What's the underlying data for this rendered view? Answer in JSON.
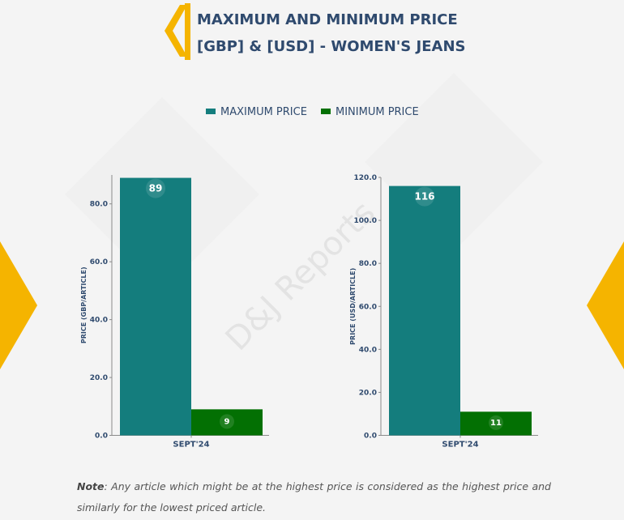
{
  "title": {
    "line1": "MAXIMUM AND MINIMUM PRICE",
    "line2": "[GBP] & [USD] - WOMEN'S JEANS"
  },
  "legend": {
    "max_label": "MAXIMUM PRICE",
    "min_label": "MINIMUM PRICE"
  },
  "colors": {
    "max": "#147d7d",
    "min": "#037003",
    "accent": "#f5b400",
    "text": "#2f4a6e"
  },
  "watermark": "D&J Reports",
  "chart_data": [
    {
      "type": "bar",
      "categories": [
        "SEPT'24"
      ],
      "series": [
        {
          "name": "MAXIMUM PRICE",
          "values": [
            89
          ]
        },
        {
          "name": "MINIMUM PRICE",
          "values": [
            9
          ]
        }
      ],
      "ylabel": "PRICE (GBP/ARTICLE)",
      "ylim": [
        0,
        90
      ],
      "yticks": [
        0,
        20,
        40,
        60,
        80
      ],
      "ytick_labels": [
        "0.0",
        "20.0",
        "40.0",
        "60.0",
        "80.0"
      ]
    },
    {
      "type": "bar",
      "categories": [
        "SEPT'24"
      ],
      "series": [
        {
          "name": "MAXIMUM PRICE",
          "values": [
            116
          ]
        },
        {
          "name": "MINIMUM PRICE",
          "values": [
            11
          ]
        }
      ],
      "ylabel": "PRICE (USD/ARTICLE)",
      "ylim": [
        0,
        120
      ],
      "yticks": [
        0,
        20,
        40,
        60,
        80,
        100,
        120
      ],
      "ytick_labels": [
        "0.0",
        "20.0",
        "40.0",
        "60.0",
        "80.0",
        "100.0",
        "120.0"
      ]
    }
  ],
  "note": {
    "label": "Note",
    "text": ": Any article which might be at the highest price is considered as the highest price and similarly for the lowest priced article."
  }
}
